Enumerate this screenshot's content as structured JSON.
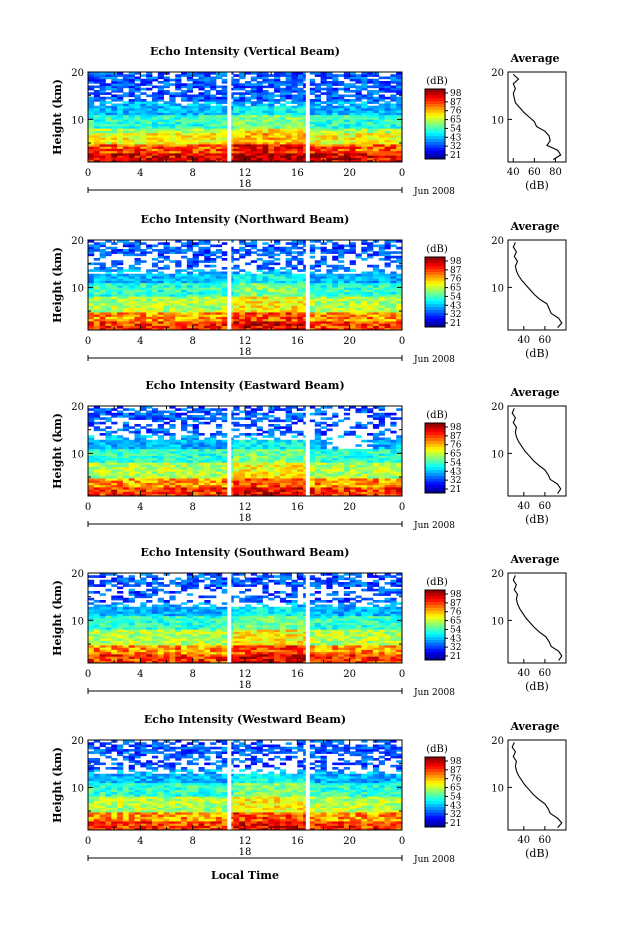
{
  "figure": {
    "xlabel": "Local Time",
    "cbar_unit": "(dB)",
    "cbar_ticks": [
      "98",
      "87",
      "76",
      "65",
      "54",
      "43",
      "32",
      "21"
    ],
    "x_ticks": [
      "0",
      "4",
      "8",
      "12",
      "16",
      "20",
      "0"
    ],
    "y_ticks": [
      "10",
      "20"
    ],
    "ylabel": "Height (km)",
    "date_label": "Jun 2008",
    "day_label": "18",
    "avg_title": "Average",
    "avg_xlabel": "(dB)"
  },
  "chart_data": [
    {
      "type": "heatmap",
      "title": "Echo Intensity (Vertical Beam)",
      "x_range": [
        0,
        24
      ],
      "y_range": [
        1,
        20
      ],
      "color_range": [
        21,
        98
      ],
      "gaps_hours": [
        10.8,
        16.8
      ],
      "avg": {
        "xlim": [
          35,
          90
        ],
        "xticks": [
          40,
          60,
          80
        ],
        "profile": [
          [
            1.5,
            78
          ],
          [
            2.5,
            85
          ],
          [
            3.5,
            82
          ],
          [
            4.5,
            72
          ],
          [
            5.5,
            75
          ],
          [
            6.5,
            74
          ],
          [
            7.5,
            70
          ],
          [
            8.5,
            62
          ],
          [
            9.5,
            60
          ],
          [
            10.5,
            55
          ],
          [
            11.5,
            50
          ],
          [
            12.5,
            46
          ],
          [
            13.5,
            42
          ],
          [
            14.5,
            41
          ],
          [
            15.5,
            40
          ],
          [
            16.5,
            42
          ],
          [
            17.5,
            40
          ],
          [
            18.5,
            45
          ],
          [
            19.5,
            40
          ]
        ]
      }
    },
    {
      "type": "heatmap",
      "title": "Echo Intensity (Northward Beam)",
      "x_range": [
        0,
        24
      ],
      "y_range": [
        1,
        20
      ],
      "color_range": [
        21,
        98
      ],
      "gaps_hours": [
        10.8,
        16.8
      ],
      "avg": {
        "xlim": [
          25,
          80
        ],
        "xticks": [
          40,
          60
        ],
        "profile": [
          [
            1.5,
            72
          ],
          [
            2.5,
            76
          ],
          [
            3.5,
            73
          ],
          [
            4.5,
            66
          ],
          [
            5.5,
            64
          ],
          [
            6.5,
            62
          ],
          [
            7.5,
            55
          ],
          [
            8.5,
            50
          ],
          [
            9.5,
            46
          ],
          [
            10.5,
            42
          ],
          [
            11.5,
            38
          ],
          [
            12.5,
            35
          ],
          [
            13.5,
            33
          ],
          [
            14.5,
            32
          ],
          [
            15.5,
            34
          ],
          [
            16.5,
            31
          ],
          [
            17.5,
            33
          ],
          [
            18.5,
            30
          ],
          [
            19.5,
            32
          ]
        ]
      }
    },
    {
      "type": "heatmap",
      "title": "Echo Intensity (Eastward Beam)",
      "x_range": [
        0,
        24
      ],
      "y_range": [
        1,
        20
      ],
      "color_range": [
        21,
        98
      ],
      "gaps_hours": [
        10.8,
        16.8
      ],
      "avg": {
        "xlim": [
          25,
          80
        ],
        "xticks": [
          40,
          60
        ],
        "profile": [
          [
            1.5,
            72
          ],
          [
            2.5,
            75
          ],
          [
            3.5,
            72
          ],
          [
            4.5,
            65
          ],
          [
            5.5,
            63
          ],
          [
            6.5,
            60
          ],
          [
            7.5,
            54
          ],
          [
            8.5,
            49
          ],
          [
            9.5,
            45
          ],
          [
            10.5,
            41
          ],
          [
            11.5,
            38
          ],
          [
            12.5,
            35
          ],
          [
            13.5,
            33
          ],
          [
            14.5,
            32
          ],
          [
            15.5,
            33
          ],
          [
            16.5,
            30
          ],
          [
            17.5,
            32
          ],
          [
            18.5,
            29
          ],
          [
            19.5,
            31
          ]
        ]
      }
    },
    {
      "type": "heatmap",
      "title": "Echo Intensity (Southward Beam)",
      "x_range": [
        0,
        24
      ],
      "y_range": [
        1,
        20
      ],
      "color_range": [
        21,
        98
      ],
      "gaps_hours": [
        10.8,
        16.8
      ],
      "avg": {
        "xlim": [
          25,
          80
        ],
        "xticks": [
          40,
          60
        ],
        "profile": [
          [
            1.5,
            73
          ],
          [
            2.5,
            76
          ],
          [
            3.5,
            73
          ],
          [
            4.5,
            66
          ],
          [
            5.5,
            64
          ],
          [
            6.5,
            61
          ],
          [
            7.5,
            55
          ],
          [
            8.5,
            50
          ],
          [
            9.5,
            46
          ],
          [
            10.5,
            42
          ],
          [
            11.5,
            39
          ],
          [
            12.5,
            36
          ],
          [
            13.5,
            34
          ],
          [
            14.5,
            33
          ],
          [
            15.5,
            34
          ],
          [
            16.5,
            31
          ],
          [
            17.5,
            33
          ],
          [
            18.5,
            30
          ],
          [
            19.5,
            32
          ]
        ]
      }
    },
    {
      "type": "heatmap",
      "title": "Echo Intensity (Westward Beam)",
      "x_range": [
        0,
        24
      ],
      "y_range": [
        1,
        20
      ],
      "color_range": [
        21,
        98
      ],
      "gaps_hours": [
        10.8,
        16.8
      ],
      "avg": {
        "xlim": [
          25,
          80
        ],
        "xticks": [
          40,
          60
        ],
        "profile": [
          [
            1.5,
            72
          ],
          [
            2.5,
            76
          ],
          [
            3.5,
            72
          ],
          [
            4.5,
            65
          ],
          [
            5.5,
            63
          ],
          [
            6.5,
            60
          ],
          [
            7.5,
            54
          ],
          [
            8.5,
            49
          ],
          [
            9.5,
            45
          ],
          [
            10.5,
            41
          ],
          [
            11.5,
            38
          ],
          [
            12.5,
            35
          ],
          [
            13.5,
            33
          ],
          [
            14.5,
            32
          ],
          [
            15.5,
            33
          ],
          [
            16.5,
            30
          ],
          [
            17.5,
            32
          ],
          [
            18.5,
            29
          ],
          [
            19.5,
            31
          ]
        ]
      }
    }
  ]
}
